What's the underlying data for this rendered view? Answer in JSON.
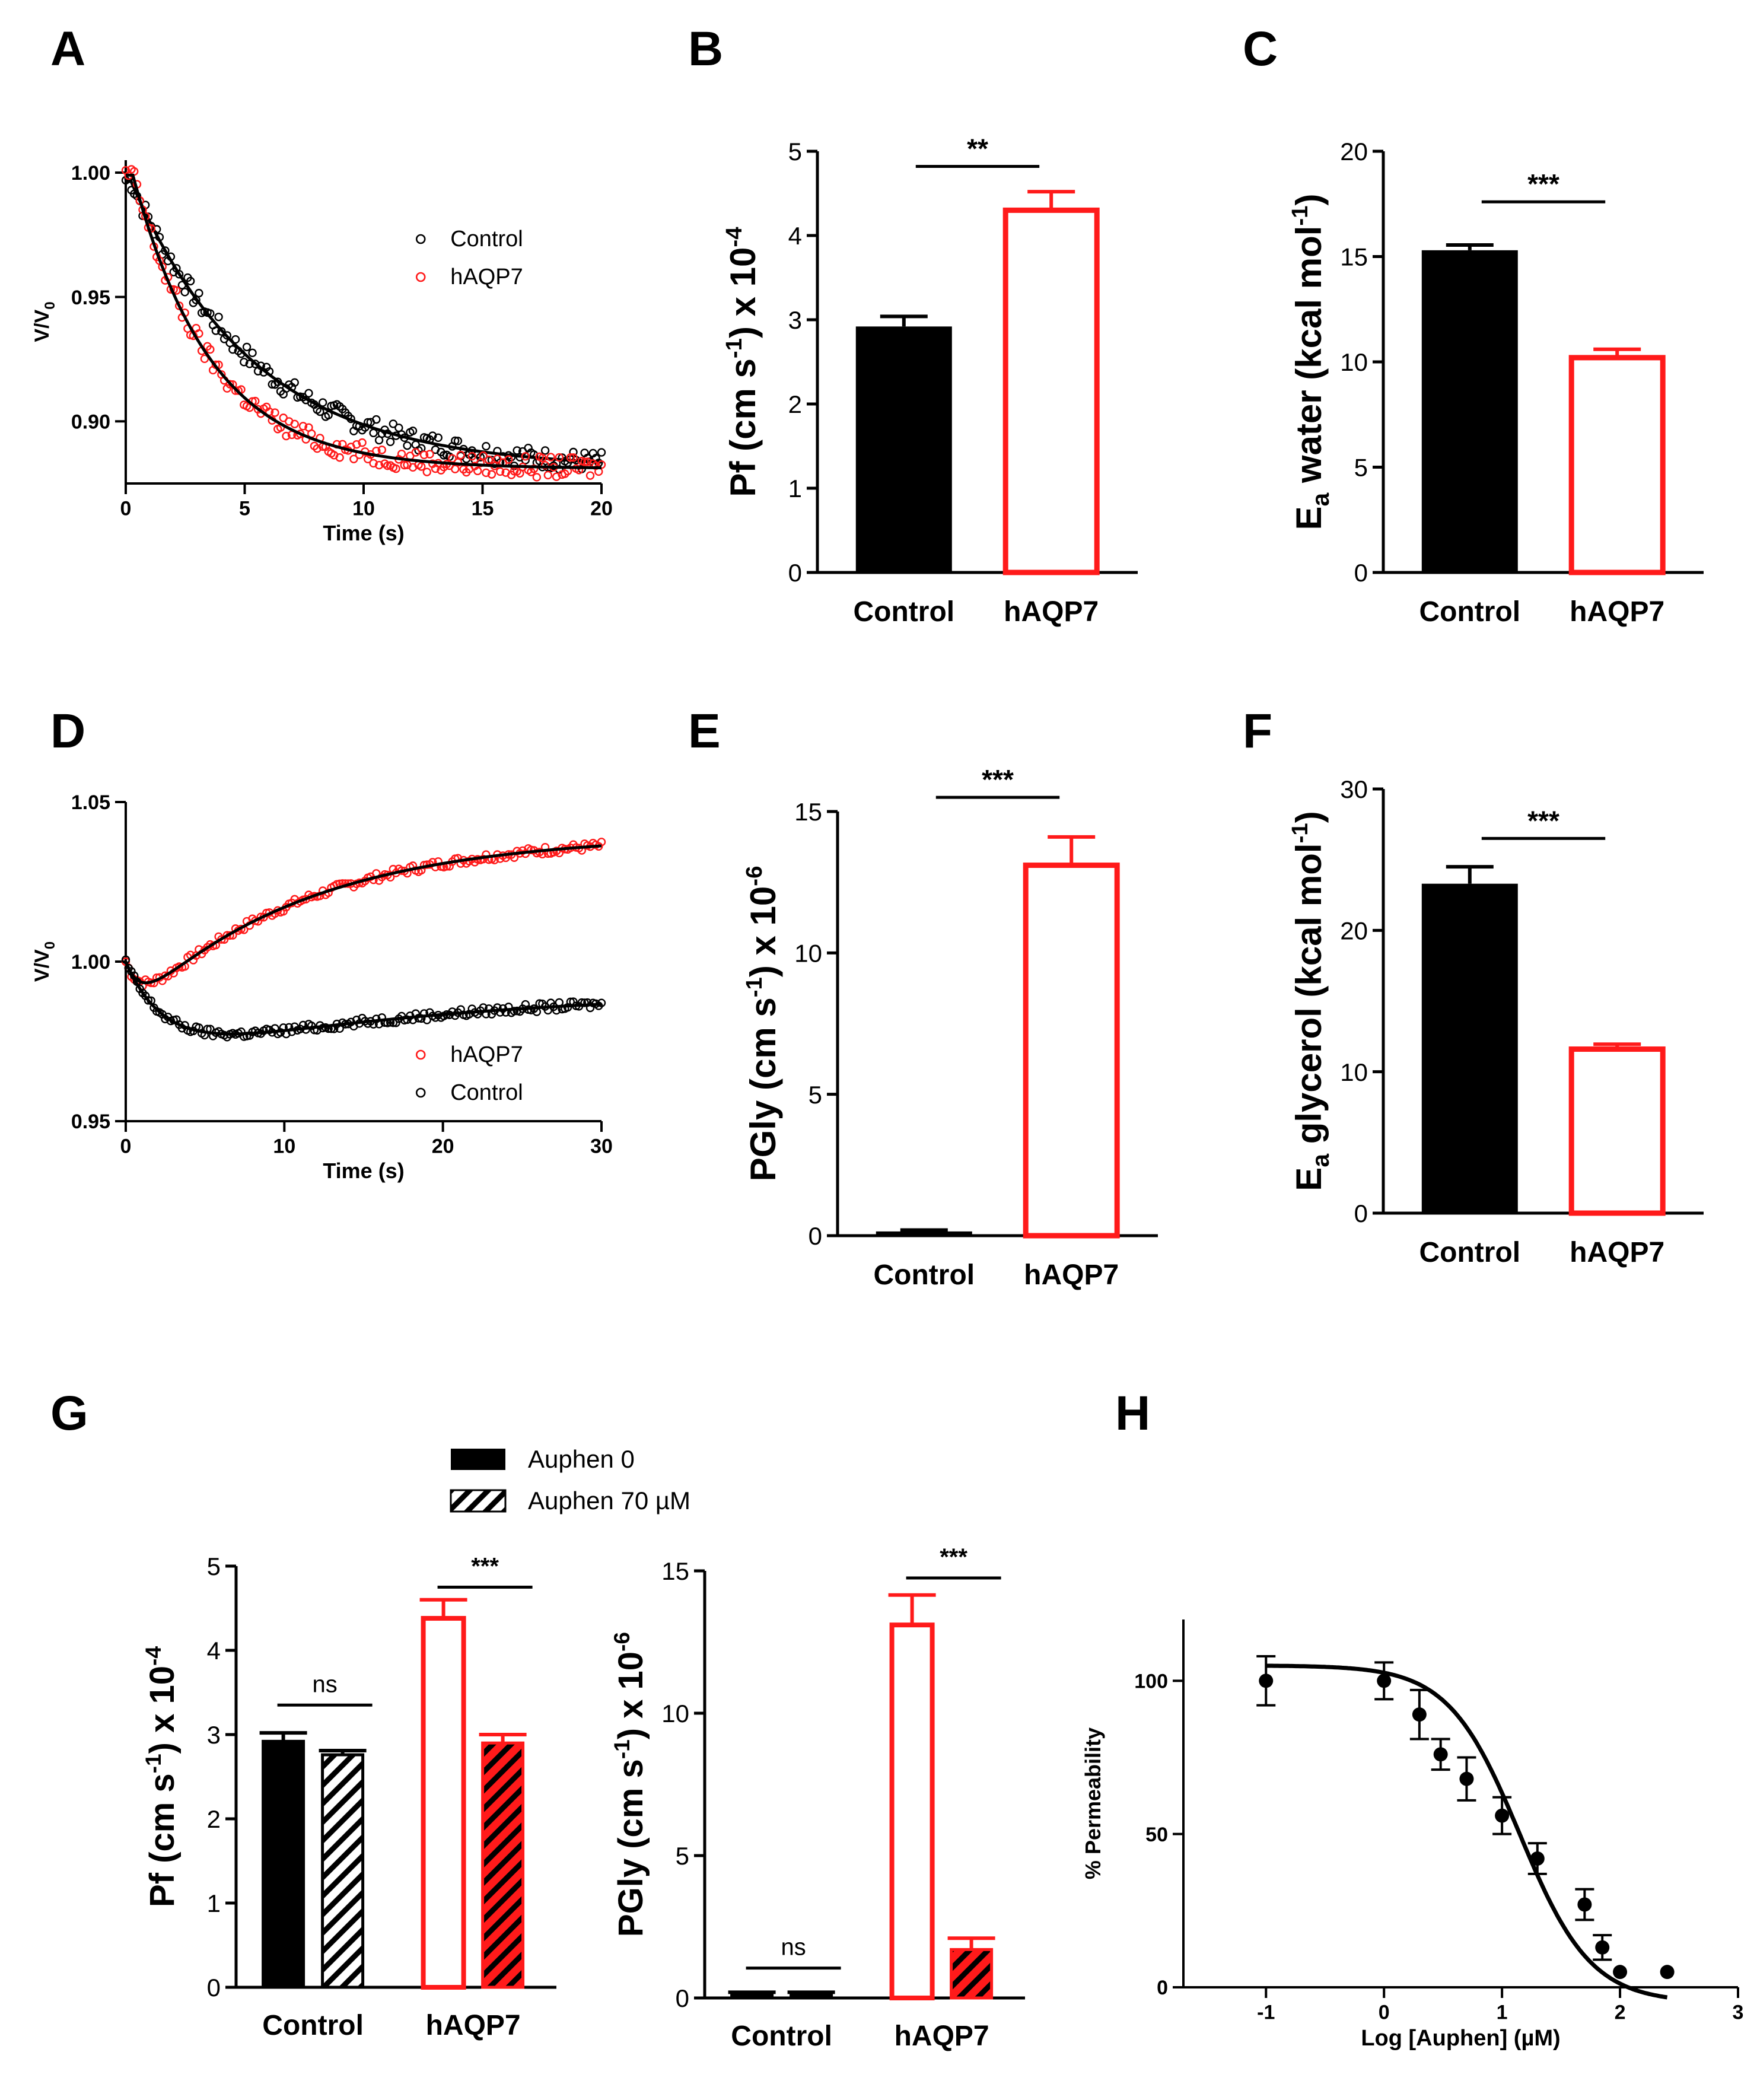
{
  "figure": {
    "panel_letters": [
      "A",
      "B",
      "C",
      "D",
      "E",
      "F",
      "G",
      "H"
    ]
  },
  "colors": {
    "control": "#000000",
    "haqp7": "#ff1a1a"
  },
  "chart_data": [
    {
      "id": "A",
      "type": "scatter",
      "xlabel": "Time (s)",
      "ylabel": "V/V0",
      "xlim": [
        0,
        20
      ],
      "ylim": [
        0.875,
        1.005
      ],
      "xticks": [
        0,
        5,
        10,
        15,
        20
      ],
      "xtick_labels": [
        "0",
        "5",
        "10",
        "15",
        "20"
      ],
      "yticks": [
        0.9,
        0.95,
        1.0
      ],
      "ytick_labels": [
        "0.90",
        "0.95",
        "1.00"
      ],
      "legend": [
        "Control",
        "hAQP7"
      ],
      "legend_position": "top-right",
      "series": [
        {
          "name": "Control",
          "color": "#000000",
          "model": {
            "y0": 0.881,
            "amp": 0.116,
            "tau": 5.2,
            "t0": 0.2
          }
        },
        {
          "name": "hAQP7",
          "color": "#ff1a1a",
          "model": {
            "y0": 0.881,
            "amp": 0.118,
            "tau": 3.3,
            "t0": 0.3
          }
        }
      ]
    },
    {
      "id": "B",
      "type": "bar",
      "categories": [
        "Control",
        "hAQP7"
      ],
      "values": [
        2.92,
        4.3
      ],
      "errors": [
        0.12,
        0.22
      ],
      "styles": [
        "filled-black",
        "open-red"
      ],
      "ylabel_main": "Pf (cm s",
      "ylabel_sup1": "-1",
      "ylabel_mid": ") x 10",
      "ylabel_sup2": "-4",
      "ylim": [
        0,
        5
      ],
      "yticks": [
        0,
        1,
        2,
        3,
        4,
        5
      ],
      "ytick_labels": [
        "0",
        "1",
        "2",
        "3",
        "4",
        "5"
      ],
      "significance": [
        "**"
      ],
      "sig_y": [
        4.82
      ]
    },
    {
      "id": "C",
      "type": "bar",
      "categories": [
        "Control",
        "hAQP7"
      ],
      "values": [
        15.3,
        10.2
      ],
      "errors": [
        0.25,
        0.4
      ],
      "styles": [
        "filled-black",
        "open-red"
      ],
      "ylabel_main": "E",
      "ylabel_sub": "a",
      "ylabel_rest": " water (kcal mol",
      "ylabel_sup": "-1",
      "ylabel_end": ")",
      "ylim": [
        0,
        20
      ],
      "yticks": [
        0,
        5,
        10,
        15,
        20
      ],
      "ytick_labels": [
        "0",
        "5",
        "10",
        "15",
        "20"
      ],
      "significance": [
        "***"
      ],
      "sig_y": [
        17.6
      ]
    },
    {
      "id": "D",
      "type": "scatter",
      "xlabel": "Time (s)",
      "ylabel": "V/V0",
      "xlim": [
        0,
        30
      ],
      "ylim": [
        0.95,
        1.05
      ],
      "xticks": [
        0,
        10,
        20,
        30
      ],
      "xtick_labels": [
        "0",
        "10",
        "20",
        "30"
      ],
      "yticks": [
        0.95,
        1.0,
        1.05
      ],
      "ytick_labels": [
        "0.95",
        "1.00",
        "1.05"
      ],
      "legend": [
        "hAQP7",
        "Control"
      ],
      "legend_position": "bottom-right",
      "series": [
        {
          "name": "hAQP7",
          "color": "#ff1a1a",
          "model": {
            "kind": "swell",
            "drop": 0.017,
            "tau1": 0.9,
            "rise": 0.057,
            "tau2": 11
          }
        },
        {
          "name": "Control",
          "color": "#000000",
          "model": {
            "kind": "shrink",
            "drop": 0.032,
            "tau1": 2.5,
            "rise": 0.023,
            "tau2": 18
          }
        }
      ]
    },
    {
      "id": "E",
      "type": "bar",
      "categories": [
        "Control",
        "hAQP7"
      ],
      "values": [
        0.15,
        13.1
      ],
      "errors": [
        0.05,
        1.0
      ],
      "styles": [
        "filled-black",
        "open-red"
      ],
      "ylabel_main": "PGly (cm s",
      "ylabel_sup1": "-1",
      "ylabel_mid": ") x 10",
      "ylabel_sup2": "-6",
      "ylim": [
        0,
        15
      ],
      "yticks": [
        0,
        5,
        10,
        15
      ],
      "ytick_labels": [
        "0",
        "5",
        "10",
        "15"
      ],
      "significance": [
        "***"
      ],
      "sig_y": [
        15.5
      ]
    },
    {
      "id": "F",
      "type": "bar",
      "categories": [
        "Control",
        "hAQP7"
      ],
      "values": [
        23.3,
        11.6
      ],
      "errors": [
        1.2,
        0.35
      ],
      "styles": [
        "filled-black",
        "open-red"
      ],
      "ylabel_main": "E",
      "ylabel_sub": "a",
      "ylabel_rest": " glycerol (kcal mol",
      "ylabel_sup": "-1",
      "ylabel_end": ")",
      "ylim": [
        0,
        30
      ],
      "yticks": [
        0,
        10,
        20,
        30
      ],
      "ytick_labels": [
        "0",
        "10",
        "20",
        "30"
      ],
      "significance": [
        "***"
      ],
      "sig_y": [
        26.5
      ]
    },
    {
      "id": "G1",
      "type": "bar",
      "categories": [
        "Control",
        "hAQP7"
      ],
      "series": [
        {
          "name": "Auphen 0",
          "values": [
            2.92,
            4.38
          ],
          "errors": [
            0.1,
            0.22
          ]
        },
        {
          "name": "Auphen 70 µM",
          "values": [
            2.76,
            2.9
          ],
          "errors": [
            0.05,
            0.1
          ]
        }
      ],
      "ylabel_main": "Pf (cm s",
      "ylabel_sup1": "-1",
      "ylabel_mid": ") x 10",
      "ylabel_sup2": "-4",
      "ylim": [
        0,
        5
      ],
      "yticks": [
        0,
        1,
        2,
        3,
        4,
        5
      ],
      "ytick_labels": [
        "0",
        "1",
        "2",
        "3",
        "4",
        "5"
      ],
      "significance": [
        "ns",
        "***"
      ],
      "sig_y": [
        3.35,
        4.75
      ]
    },
    {
      "id": "G2",
      "type": "bar",
      "categories": [
        "Control",
        "hAQP7"
      ],
      "series": [
        {
          "name": "Auphen 0",
          "values": [
            0.15,
            13.1
          ],
          "errors": [
            0.05,
            1.05
          ]
        },
        {
          "name": "Auphen 70 µM",
          "values": [
            0.1,
            1.7
          ],
          "errors": [
            0.1,
            0.4
          ]
        }
      ],
      "ylabel_main": "PGly (cm s",
      "ylabel_sup1": "-1",
      "ylabel_mid": ") x 10",
      "ylabel_sup2": "-6",
      "ylim": [
        0,
        15
      ],
      "yticks": [
        0,
        5,
        10,
        15
      ],
      "ytick_labels": [
        "0",
        "5",
        "10",
        "15"
      ],
      "significance": [
        "ns",
        "***"
      ],
      "sig_y": [
        1.05,
        14.75
      ]
    },
    {
      "id": "G_legend",
      "entries": [
        "Auphen 0",
        "Auphen 70 µM"
      ]
    },
    {
      "id": "H",
      "type": "scatter",
      "xlabel": "Log [Auphen] (µM)",
      "ylabel": "% Permeability",
      "xlim": [
        -1.7,
        3
      ],
      "ylim": [
        0,
        120
      ],
      "xticks": [
        -1,
        0,
        1,
        2,
        3
      ],
      "xtick_labels": [
        "-1",
        "0",
        "1",
        "2",
        "3"
      ],
      "yticks": [
        0,
        50,
        100
      ],
      "ytick_labels": [
        "0",
        "50",
        "100"
      ],
      "x": [
        -1,
        0,
        0.3,
        0.48,
        0.7,
        1.0,
        1.3,
        1.7,
        1.85,
        2.0,
        2.4
      ],
      "y": [
        100,
        100,
        89,
        76,
        68,
        56,
        42,
        27,
        13,
        5,
        5
      ],
      "errors": [
        8,
        6,
        8,
        5,
        7,
        6,
        5,
        5,
        4,
        0,
        0
      ],
      "fit": {
        "top": 105,
        "bottom": -5,
        "logIC50": 1.15,
        "hill": 0.72
      }
    }
  ]
}
